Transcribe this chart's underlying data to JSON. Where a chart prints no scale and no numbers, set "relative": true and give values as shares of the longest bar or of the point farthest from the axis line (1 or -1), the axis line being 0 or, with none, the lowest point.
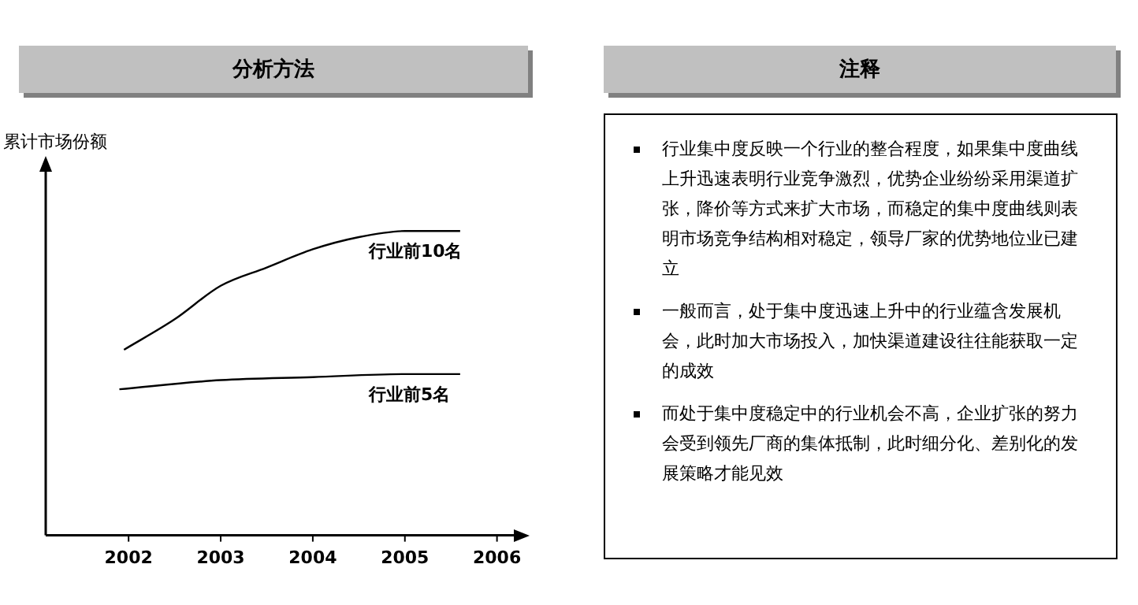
{
  "chart_data": [
    {
      "type": "line",
      "title": "分析方法",
      "ylabel": "累计市场份额",
      "relative": true,
      "xlim": [
        2001.1,
        2006.2
      ],
      "xticks": [
        2002,
        2003,
        2004,
        2005,
        2006
      ],
      "grid": false,
      "legend": false,
      "marker": "none",
      "line_style": "solid",
      "tick_labels": "x",
      "series": [
        {
          "name": "行业前10名",
          "color": "#000000",
          "x": [
            2001.95,
            2002.5,
            2003,
            2003.5,
            2004,
            2004.5,
            2005,
            2005.6
          ],
          "values": [
            0.61,
            0.71,
            0.82,
            0.88,
            0.94,
            0.98,
            1,
            1
          ]
        },
        {
          "name": "行业前5名",
          "color": "#000000",
          "x": [
            2001.9,
            2003,
            2004,
            2005,
            2005.6
          ],
          "values": [
            0.48,
            0.51,
            0.52,
            0.53,
            0.53
          ]
        }
      ]
    },
    {
      "type": "other",
      "title": "注释",
      "annotations": [
        "行业集中度反映一个行业的整合程度，如果集中度曲线上升迅速表明行业竞争激烈，优势企业纷纷采用渠道扩张，降价等方式来扩大市场，而稳定的集中度曲线则表明市场竞争结构相对稳定，领导厂家的优势地位业已建立",
        "一般而言，处于集中度迅速上升中的行业蕴含发展机会，此时加大市场投入，加快渠道建设往往能获取一定的成效",
        "而处于集中度稳定中的行业机会不高，企业扩张的努力会受到领先厂商的集体抵制，此时细分化、差别化的发展策略才能见效"
      ]
    }
  ]
}
